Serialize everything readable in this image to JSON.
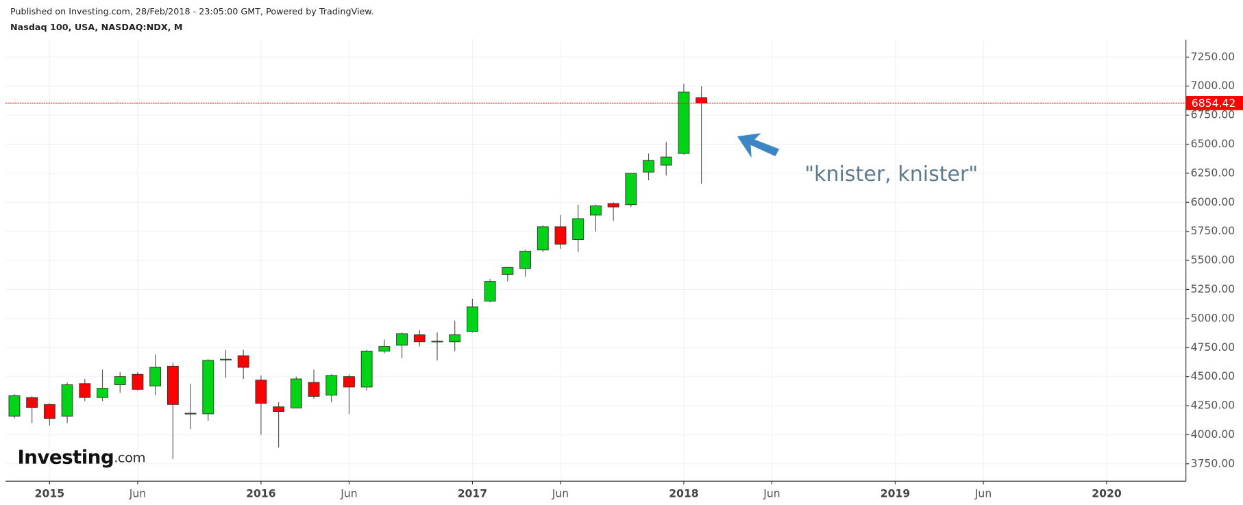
{
  "header": {
    "published": "Published on Investing.com, 28/Feb/2018 - 23:05:00 GMT, Powered by TradingView.",
    "symbol": "Nasdaq 100, USA, NASDAQ:NDX, M",
    "brand": "Investing",
    "brand_suffix": ".com"
  },
  "chart_data": {
    "type": "candlestick",
    "annotation": "\"knister, knister\"",
    "x": [
      "2014-11",
      "2014-12",
      "2015-01",
      "2015-02",
      "2015-03",
      "2015-04",
      "2015-05",
      "2015-06",
      "2015-07",
      "2015-08",
      "2015-09",
      "2015-10",
      "2015-11",
      "2015-12",
      "2016-01",
      "2016-02",
      "2016-03",
      "2016-04",
      "2016-05",
      "2016-06",
      "2016-07",
      "2016-08",
      "2016-09",
      "2016-10",
      "2016-11",
      "2016-12",
      "2017-01",
      "2017-02",
      "2017-03",
      "2017-04",
      "2017-05",
      "2017-06",
      "2017-07",
      "2017-08",
      "2017-09",
      "2017-10",
      "2017-11",
      "2017-12",
      "2018-01",
      "2018-02"
    ],
    "open": [
      4160,
      4320,
      4260,
      4160,
      4440,
      4320,
      4430,
      4520,
      4420,
      4590,
      4180,
      4180,
      4645,
      4680,
      4470,
      4240,
      4230,
      4450,
      4340,
      4500,
      4410,
      4720,
      4770,
      4860,
      4800,
      4800,
      4890,
      5150,
      5380,
      5430,
      5590,
      5790,
      5680,
      5890,
      5990,
      5980,
      6260,
      6320,
      6420,
      6900
    ],
    "high": [
      4350,
      4330,
      4270,
      4450,
      4480,
      4560,
      4540,
      4540,
      4690,
      4620,
      4440,
      4650,
      4730,
      4730,
      4510,
      4280,
      4500,
      4560,
      4520,
      4520,
      4730,
      4820,
      4880,
      4900,
      4880,
      4980,
      5170,
      5340,
      5440,
      5590,
      5800,
      5890,
      5980,
      5980,
      6000,
      6250,
      6420,
      6520,
      7020,
      7000
    ],
    "low": [
      4140,
      4100,
      4080,
      4100,
      4290,
      4290,
      4360,
      4380,
      4340,
      3790,
      4050,
      4120,
      4490,
      4480,
      4000,
      3890,
      4230,
      4310,
      4280,
      4180,
      4380,
      4700,
      4660,
      4760,
      4640,
      4720,
      4880,
      5140,
      5320,
      5360,
      5570,
      5600,
      5570,
      5750,
      5840,
      5960,
      6190,
      6230,
      6410,
      6160
    ],
    "close": [
      4335,
      4235,
      4140,
      4430,
      4320,
      4400,
      4500,
      4390,
      4580,
      4260,
      4185,
      4640,
      4650,
      4580,
      4270,
      4200,
      4480,
      4330,
      4510,
      4410,
      4720,
      4760,
      4870,
      4800,
      4805,
      4860,
      5100,
      5320,
      5440,
      5580,
      5790,
      5640,
      5860,
      5970,
      5960,
      6250,
      6360,
      6390,
      6950,
      6854.42
    ],
    "up_color": "#00d417",
    "down_color": "#ff0000",
    "price_line_color": "#ff0000",
    "xlim": [
      "2014-11",
      "2020-05"
    ],
    "xticks": [
      {
        "value": "2015-01",
        "label": "2015"
      },
      {
        "value": "2015-06",
        "label": "Jun"
      },
      {
        "value": "2016-01",
        "label": "2016"
      },
      {
        "value": "2016-06",
        "label": "Jun"
      },
      {
        "value": "2017-01",
        "label": "2017"
      },
      {
        "value": "2017-06",
        "label": "Jun"
      },
      {
        "value": "2018-01",
        "label": "2018"
      },
      {
        "value": "2018-06",
        "label": "Jun"
      },
      {
        "value": "2019-01",
        "label": "2019"
      },
      {
        "value": "2019-06",
        "label": "Jun"
      },
      {
        "value": "2020-01",
        "label": "2020"
      }
    ],
    "ylim": [
      3600,
      7400
    ],
    "yticks": [
      {
        "value": 3750,
        "label": "3750.00"
      },
      {
        "value": 4000,
        "label": "4000.00"
      },
      {
        "value": 4250,
        "label": "4250.00"
      },
      {
        "value": 4500,
        "label": "4500.00"
      },
      {
        "value": 4750,
        "label": "4750.00"
      },
      {
        "value": 5000,
        "label": "5000.00"
      },
      {
        "value": 5250,
        "label": "5250.00"
      },
      {
        "value": 5500,
        "label": "5500.00"
      },
      {
        "value": 5750,
        "label": "5750.00"
      },
      {
        "value": 6000,
        "label": "6000.00"
      },
      {
        "value": 6250,
        "label": "6250.00"
      },
      {
        "value": 6500,
        "label": "6500.00"
      },
      {
        "value": 6750,
        "label": "6750.00"
      },
      {
        "value": 7000,
        "label": "7000.00"
      },
      {
        "value": 7250,
        "label": "7250.00"
      }
    ],
    "grid": true
  }
}
